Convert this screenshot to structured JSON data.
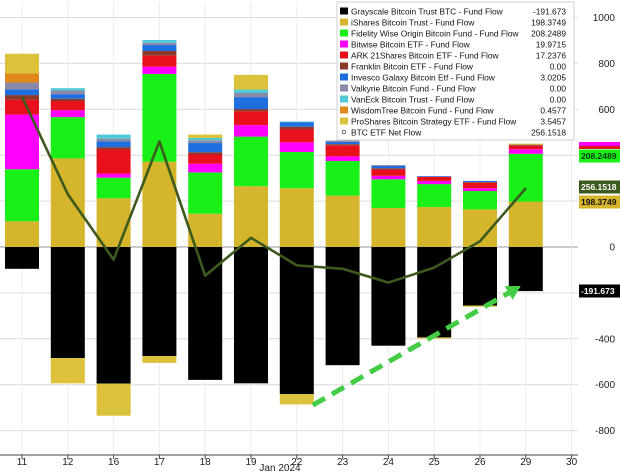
{
  "chart_data": {
    "type": "bar",
    "stacked": true,
    "x_label": "Jan 2024",
    "categories": [
      "11",
      "12",
      "16",
      "17",
      "18",
      "19",
      "22",
      "23",
      "24",
      "25",
      "26",
      "29",
      "30"
    ],
    "ylim": [
      -850,
      1050
    ],
    "yticks": [
      1000,
      800,
      600,
      400,
      200,
      0,
      -200,
      -400,
      -600,
      -800
    ],
    "grid": true,
    "series": [
      {
        "name": "Grayscale Bitcoin Trust BTC - Fund Flow",
        "value_label": "-191.673",
        "color": "#000000",
        "values": [
          -95,
          -484,
          -595,
          -475,
          -579,
          -594,
          -641,
          -515,
          -430,
          -394,
          -255,
          -192,
          null
        ]
      },
      {
        "name": "iShares Bitcoin Trust - Fund Flow",
        "value_label": "198.3749",
        "color": "#d4b52c",
        "values": [
          112,
          386,
          212,
          372,
          145,
          265,
          256,
          224,
          170,
          174,
          164,
          198,
          null
        ]
      },
      {
        "name": "Fidelity Wise Origin Bitcoin Fund - Fund Flow",
        "value_label": "208.2489",
        "color": "#18f018",
        "values": [
          227,
          180,
          90,
          382,
          180,
          216,
          158,
          151,
          125,
          100,
          80,
          208,
          null
        ]
      },
      {
        "name": "Bitwise Bitcoin ETF - Fund Flow",
        "value_label": "19.9715",
        "color": "#ff00ff",
        "values": [
          238,
          30,
          18,
          32,
          38,
          50,
          42,
          20,
          15,
          14,
          12,
          20,
          null
        ]
      },
      {
        "name": "ARK 21Shares Bitcoin ETF - Fund Flow",
        "value_label": "17.2376",
        "color": "#e8101a",
        "values": [
          65,
          40,
          105,
          48,
          40,
          60,
          58,
          48,
          28,
          18,
          24,
          17,
          null
        ]
      },
      {
        "name": "Franklin Bitcoin ETF - Fund Flow",
        "value_label": "0.00",
        "color": "#8b3a2a",
        "values": [
          20,
          10,
          10,
          20,
          10,
          10,
          10,
          5,
          5,
          0,
          3,
          0,
          null
        ]
      },
      {
        "name": "Invesco Galaxy Bitcoin Etf - Fund Flow",
        "value_label": "3.0205",
        "color": "#1e6ee0",
        "values": [
          25,
          20,
          25,
          26,
          40,
          52,
          20,
          10,
          10,
          3,
          5,
          3,
          null
        ]
      },
      {
        "name": "Valkyrie Bitcoin Fund - Fund Flow",
        "value_label": "0.00",
        "color": "#8a8aa8",
        "values": [
          30,
          16,
          12,
          10,
          12,
          18,
          0,
          6,
          4,
          0,
          0,
          0,
          null
        ]
      },
      {
        "name": "VanEck Bitcoin Trust - Fund Flow",
        "value_label": "0.00",
        "color": "#4fc8d8",
        "values": [
          0,
          10,
          18,
          12,
          10,
          15,
          3,
          0,
          0,
          0,
          0,
          0,
          null
        ]
      },
      {
        "name": "WisdomTree Bitcoin Fund - Fund Flow",
        "value_label": "0.4577",
        "color": "#e0881a",
        "values": [
          40,
          0,
          0,
          0,
          0,
          0,
          0,
          0,
          0,
          0,
          0,
          0.5,
          null
        ]
      },
      {
        "name": "ProShares Bitcoin Strategy ETF - Fund Flow",
        "value_label": "3.5457",
        "color": "#dcc23a",
        "values": [
          85,
          -110,
          -140,
          -30,
          15,
          64,
          -45,
          0,
          0,
          -5,
          -5,
          4,
          null
        ]
      }
    ],
    "line_series": {
      "name": "BTC ETF Net Flow",
      "value_label": "256.1518",
      "color": "#3d5a1e",
      "values": [
        655,
        230,
        -55,
        460,
        -125,
        40,
        -80,
        -95,
        -155,
        -90,
        25,
        256,
        null
      ]
    },
    "annotation": {
      "type": "dashed-arrow",
      "color": "#44cc44",
      "from": {
        "x": "22",
        "y": -580
      },
      "to": {
        "x": "29",
        "y": -170
      }
    },
    "value_tags": [
      {
        "text": "-191.673",
        "value": -191.673,
        "bg": "#000000",
        "fg": "#ffffff"
      },
      {
        "text": "256.1518",
        "value": 256.1518,
        "bg": "#3d5a1e",
        "fg": "#ffffff"
      },
      {
        "text": "208.2489",
        "value": 208.2489,
        "bg": "#18f018",
        "fg": "#0a3a0a"
      },
      {
        "text": "198.3749",
        "value": 198.3749,
        "bg": "#d4b52c",
        "fg": "#111111"
      }
    ]
  }
}
